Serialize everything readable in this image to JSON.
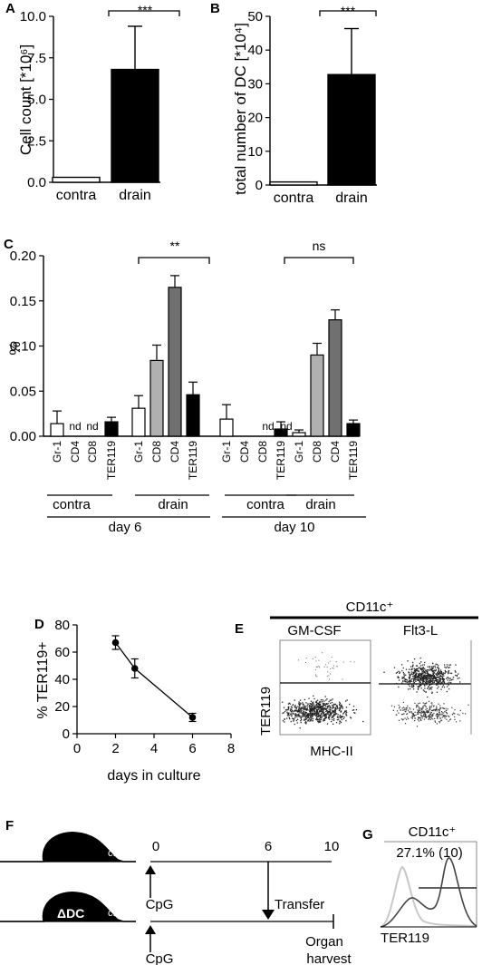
{
  "colors": {
    "black": "#000000",
    "dark_gray": "#707070",
    "light_gray": "#b0b0b0",
    "white": "#ffffff"
  },
  "panels": {
    "A": {
      "label": "A",
      "ylabel": "Cell count [*10⁶]",
      "sig": "***"
    },
    "B": {
      "label": "B",
      "ylabel": "total number of DC [*10⁴]",
      "sig": "***"
    },
    "C": {
      "label": "C",
      "ylabel": "%",
      "sig1": "**",
      "sig2": "ns",
      "group_contra": "contra",
      "group_drain": "drain",
      "day6": "day 6",
      "day10": "day 10",
      "nd": "nd"
    },
    "D": {
      "label": "D"
    },
    "E": {
      "label": "E",
      "header": "CD11c⁺",
      "left_title": "GM-CSF",
      "right_title": "Flt3-L",
      "ylabel": "TER119",
      "xlabel": "MHC-II"
    },
    "F": {
      "label": "F",
      "mouse2_label": "ΔDC",
      "t0": "0",
      "t6": "6",
      "t10": "10",
      "cpg1": "CpG",
      "cpg2": "CpG",
      "transfer": "Transfer",
      "organ1": "Organ",
      "organ2": "harvest"
    },
    "G": {
      "label": "G",
      "header": "CD11c⁺",
      "gate_text": "27.1% (10)",
      "xlabel": "TER119"
    }
  },
  "chart_data": [
    {
      "type": "bar",
      "panel": "A",
      "categories": [
        "contra",
        "drain"
      ],
      "values": [
        0.3,
        6.8
      ],
      "errors": [
        0,
        2.6
      ],
      "colors": [
        "#ffffff",
        "#000000"
      ],
      "ylim": [
        0,
        10
      ],
      "yticks": [
        "0.0",
        "2.5",
        "5.0",
        "7.5",
        "10.0"
      ]
    },
    {
      "type": "bar",
      "panel": "B",
      "categories": [
        "contra",
        "drain"
      ],
      "values": [
        1,
        36
      ],
      "errors": [
        0,
        15
      ],
      "colors": [
        "#ffffff",
        "#000000"
      ],
      "ylim": [
        0,
        55
      ],
      "yticks": [
        "0",
        "10",
        "20",
        "30",
        "40",
        "50"
      ]
    },
    {
      "type": "bar",
      "panel": "C",
      "ylim": [
        0,
        0.2
      ],
      "yticks": [
        "0.00",
        "0.05",
        "0.10",
        "0.15",
        "0.20"
      ],
      "bars": [
        {
          "label": "Gr-1",
          "value": 0.014,
          "err": 0.014,
          "color": "#ffffff"
        },
        {
          "label": "CD4",
          "value": null,
          "err": 0,
          "color": "#ffffff"
        },
        {
          "label": "CD8",
          "value": null,
          "err": 0,
          "color": "#ffffff"
        },
        {
          "label": "TER119",
          "value": 0.016,
          "err": 0.005,
          "color": "#000000"
        },
        {
          "label": "Gr-1",
          "value": 0.031,
          "err": 0.014,
          "color": "#ffffff"
        },
        {
          "label": "CD8",
          "value": 0.084,
          "err": 0.017,
          "color": "#b0b0b0"
        },
        {
          "label": "CD4",
          "value": 0.165,
          "err": 0.013,
          "color": "#707070"
        },
        {
          "label": "TER119",
          "value": 0.046,
          "err": 0.014,
          "color": "#000000"
        },
        {
          "label": "Gr-1",
          "value": 0.019,
          "err": 0.016,
          "color": "#ffffff"
        },
        {
          "label": "CD4",
          "value": null,
          "err": 0,
          "color": "#ffffff"
        },
        {
          "label": "CD8",
          "value": null,
          "err": 0,
          "color": "#ffffff"
        },
        {
          "label": "TER119",
          "value": 0.008,
          "err": 0.008,
          "color": "#000000"
        },
        {
          "label": "Gr-1",
          "value": 0.004,
          "err": 0.003,
          "color": "#ffffff"
        },
        {
          "label": "CD8",
          "value": 0.09,
          "err": 0.013,
          "color": "#b0b0b0"
        },
        {
          "label": "CD4",
          "value": 0.129,
          "err": 0.011,
          "color": "#707070"
        },
        {
          "label": "TER119",
          "value": 0.014,
          "err": 0.004,
          "color": "#000000"
        }
      ]
    },
    {
      "type": "line",
      "panel": "D",
      "x": [
        2,
        3,
        6
      ],
      "y": [
        67,
        48,
        12
      ],
      "errors": [
        5,
        7,
        3
      ],
      "xlim": [
        0,
        8
      ],
      "ylim": [
        0,
        80
      ],
      "xticks": [
        "0",
        "2",
        "4",
        "6",
        "8"
      ],
      "yticks": [
        "0",
        "20",
        "40",
        "60",
        "80"
      ],
      "xlabel": "days in culture",
      "ylabel": "% TER119+"
    }
  ]
}
